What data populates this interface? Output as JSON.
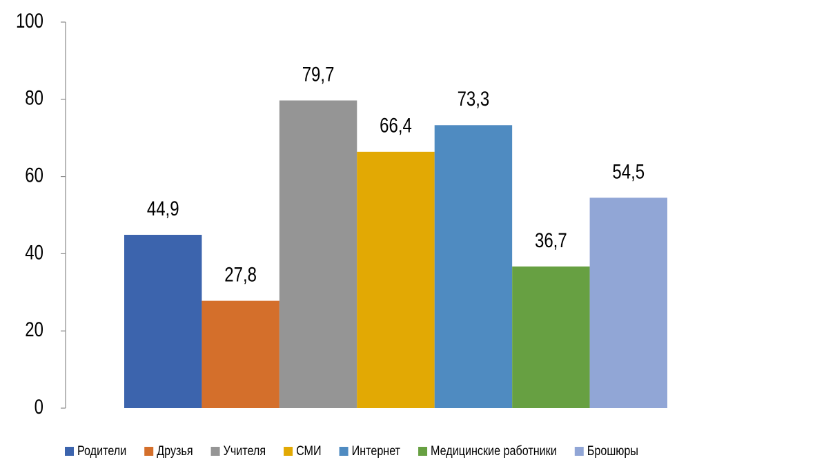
{
  "chart_data": {
    "type": "bar",
    "categories": [
      null
    ],
    "series": [
      {
        "name": "Родители",
        "color": "#3c64ad",
        "values": [
          44.9
        ],
        "value_labels": [
          "44,9"
        ]
      },
      {
        "name": "Друзья",
        "color": "#d46f2b",
        "values": [
          27.8
        ],
        "value_labels": [
          "27,8"
        ]
      },
      {
        "name": "Учителя",
        "color": "#959595",
        "values": [
          79.7
        ],
        "value_labels": [
          "79,7"
        ]
      },
      {
        "name": "СМИ",
        "color": "#e2a904",
        "values": [
          66.4
        ],
        "value_labels": [
          "66,4"
        ]
      },
      {
        "name": "Интернет",
        "color": "#4f8bc1",
        "values": [
          73.3
        ],
        "value_labels": [
          "73,3"
        ]
      },
      {
        "name": "Медицинские работники",
        "color": "#67a042",
        "values": [
          36.7
        ],
        "value_labels": [
          "36,7"
        ]
      },
      {
        "name": "Брошюры",
        "color": "#91a6d6",
        "values": [
          54.5
        ],
        "value_labels": [
          "54,5"
        ]
      }
    ],
    "ylim": [
      0,
      100
    ],
    "yticks": [
      0,
      20,
      40,
      60,
      80,
      100
    ],
    "grid": false,
    "legend": "bottom"
  }
}
